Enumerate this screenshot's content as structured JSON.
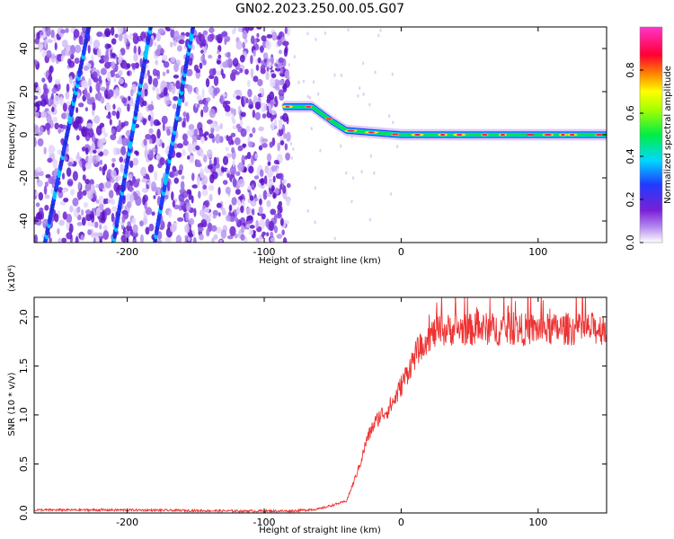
{
  "title": "GN02.2023.250.00.05.G07",
  "chart_data": [
    {
      "type": "heatmap",
      "xlabel": "Height of straight line (km)",
      "ylabel": "Frequency (Hz)",
      "xlim": [
        -268,
        150
      ],
      "ylim": [
        -50,
        50
      ],
      "x_ticks": [
        -200,
        -100,
        0,
        100
      ],
      "y_ticks": [
        -40,
        -20,
        0,
        20,
        40
      ],
      "colorbar": {
        "label": "Normalized spectral amplitude",
        "range": [
          0,
          1
        ],
        "ticks": [
          "0.0",
          "0.2",
          "0.4",
          "0.6",
          "0.8"
        ],
        "colormap": [
          "#ffffff",
          "#7a1fd6",
          "#1f3cff",
          "#00d8ff",
          "#00ee44",
          "#ffff00",
          "#ff8800",
          "#ff0033",
          "#ff33cc"
        ]
      },
      "features": {
        "noise_region_x": [
          -268,
          -82
        ],
        "slanted_streaks": [
          {
            "x_start": -260,
            "y_start": -50,
            "x_end": -228,
            "y_end": 50
          },
          {
            "x_start": -210,
            "y_start": -50,
            "x_end": -183,
            "y_end": 50
          },
          {
            "x_start": -180,
            "y_start": -50,
            "x_end": -152,
            "y_end": 50
          }
        ],
        "signal_track": [
          [
            -85,
            13
          ],
          [
            -65,
            13
          ],
          [
            -50,
            6
          ],
          [
            -40,
            2
          ],
          [
            -20,
            1
          ],
          [
            0,
            0
          ],
          [
            50,
            0
          ],
          [
            100,
            0
          ],
          [
            150,
            0
          ]
        ]
      }
    },
    {
      "type": "line",
      "xlabel": "Height of straight line (km)",
      "ylabel": "SNR (10 * v/v)",
      "y_multiplier": "(x10⁴)",
      "xlim": [
        -268,
        150
      ],
      "ylim": [
        0,
        2.2
      ],
      "x_ticks": [
        -200,
        -100,
        0,
        100
      ],
      "y_ticks": [
        "0.0",
        "0.5",
        "1.0",
        "1.5",
        "2.0"
      ],
      "color": "#ee3333",
      "series": [
        {
          "x": [
            -268,
            -200,
            -120,
            -80,
            -60,
            -50,
            -40,
            -35,
            -30,
            -25,
            -20,
            -15,
            -10,
            -5,
            0,
            5,
            10,
            15,
            20,
            25,
            30,
            35,
            40,
            50,
            60,
            70,
            80,
            90,
            100,
            110,
            120,
            130,
            140,
            150
          ],
          "values": [
            0.03,
            0.03,
            0.02,
            0.02,
            0.04,
            0.08,
            0.12,
            0.3,
            0.5,
            0.75,
            0.9,
            1.0,
            1.05,
            1.15,
            1.3,
            1.45,
            1.6,
            1.72,
            1.8,
            1.84,
            1.86,
            1.87,
            1.88,
            1.87,
            1.88,
            1.87,
            1.88,
            1.87,
            1.88,
            1.87,
            1.88,
            1.87,
            1.88,
            1.88
          ]
        }
      ]
    }
  ]
}
